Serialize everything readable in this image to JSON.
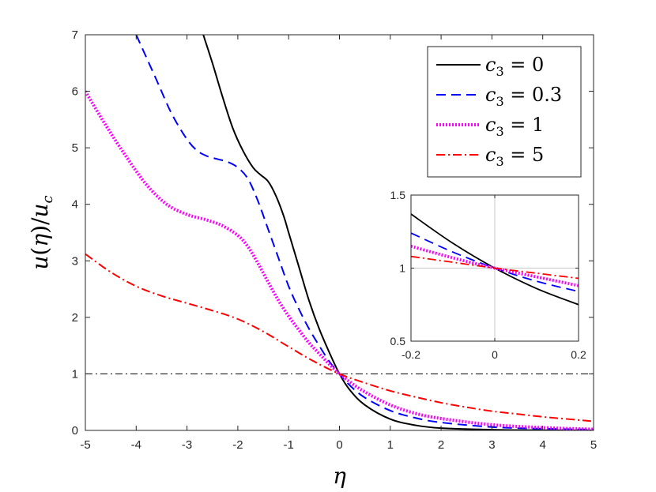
{
  "chart_data": [
    {
      "type": "line",
      "title": "",
      "xlabel": "η",
      "ylabel": "u(η)/u_c",
      "ylabel_parts": {
        "u": "u",
        "open": "(",
        "eta": "η",
        "close": ")/",
        "uc": "u",
        "sub": "c"
      },
      "xlim": [
        -5,
        5
      ],
      "ylim": [
        0,
        7
      ],
      "xticks": [
        -5,
        -4,
        -3,
        -2,
        -1,
        0,
        1,
        2,
        3,
        4,
        5
      ],
      "yticks": [
        0,
        1,
        2,
        3,
        4,
        5,
        6,
        7
      ],
      "xtick_labels": [
        "-5",
        "-4",
        "-3",
        "-2",
        "-1",
        "0",
        "1",
        "2",
        "3",
        "4",
        "5"
      ],
      "ytick_labels": [
        "0",
        "1",
        "2",
        "3",
        "4",
        "5",
        "6",
        "7"
      ],
      "reference_line": {
        "y": 1,
        "style": "dash-dot",
        "color": "#000000"
      },
      "legend_position": "top-right",
      "series": [
        {
          "name": "c_3 = 0",
          "legend": {
            "c": "c",
            "sub": "3",
            "eq": " = 0"
          },
          "color": "#000000",
          "style": "solid",
          "x": [
            -2.68,
            -2.5,
            -2.3,
            -2.1,
            -1.9,
            -1.7,
            -1.55,
            -1.4,
            -1.25,
            -1.1,
            -1.0,
            -0.8,
            -0.6,
            -0.4,
            -0.2,
            0,
            0.2,
            0.5,
            1.0,
            1.5,
            2.0,
            3.0,
            4.0,
            5.0
          ],
          "y": [
            7.0,
            6.5,
            5.9,
            5.35,
            4.95,
            4.65,
            4.52,
            4.4,
            4.15,
            3.8,
            3.5,
            2.9,
            2.3,
            1.8,
            1.38,
            1.0,
            0.72,
            0.45,
            0.2,
            0.09,
            0.04,
            0.012,
            0.004,
            0.002
          ]
        },
        {
          "name": "c_3 = 0.3",
          "legend": {
            "c": "c",
            "sub": "3",
            "eq": " = 0.3"
          },
          "color": "#0000ff",
          "style": "dashed",
          "x": [
            -4.0,
            -3.6,
            -3.3,
            -3.0,
            -2.8,
            -2.6,
            -2.4,
            -2.2,
            -2.0,
            -1.8,
            -1.6,
            -1.4,
            -1.2,
            -1.0,
            -0.8,
            -0.6,
            -0.4,
            -0.2,
            0,
            0.2,
            0.5,
            1.0,
            1.5,
            2.0,
            3.0,
            4.0,
            5.0
          ],
          "y": [
            7.0,
            6.2,
            5.6,
            5.15,
            4.95,
            4.85,
            4.8,
            4.75,
            4.65,
            4.45,
            4.05,
            3.55,
            3.05,
            2.55,
            2.15,
            1.8,
            1.5,
            1.22,
            1.0,
            0.8,
            0.58,
            0.35,
            0.22,
            0.14,
            0.06,
            0.03,
            0.015
          ]
        },
        {
          "name": "c_3 = 1",
          "legend": {
            "c": "c",
            "sub": "3",
            "eq": " = 1"
          },
          "color": "#ff00ff",
          "style": "dotted",
          "x": [
            -5.0,
            -4.6,
            -4.2,
            -3.8,
            -3.4,
            -3.0,
            -2.6,
            -2.3,
            -2.0,
            -1.8,
            -1.6,
            -1.4,
            -1.2,
            -1.0,
            -0.8,
            -0.6,
            -0.4,
            -0.2,
            0,
            0.2,
            0.5,
            1.0,
            1.5,
            2.0,
            3.0,
            4.0,
            5.0
          ],
          "y": [
            6.0,
            5.4,
            4.85,
            4.35,
            4.0,
            3.82,
            3.72,
            3.62,
            3.45,
            3.25,
            2.95,
            2.62,
            2.3,
            2.02,
            1.78,
            1.55,
            1.36,
            1.17,
            1.0,
            0.86,
            0.68,
            0.45,
            0.3,
            0.21,
            0.1,
            0.05,
            0.02
          ]
        },
        {
          "name": "c_3 = 5",
          "legend": {
            "c": "c",
            "sub": "3",
            "eq": " = 5"
          },
          "color": "#ff0000",
          "style": "dash-dot",
          "x": [
            -5.0,
            -4.5,
            -4.0,
            -3.5,
            -3.0,
            -2.5,
            -2.0,
            -1.5,
            -1.0,
            -0.5,
            0,
            0.5,
            1.0,
            1.5,
            2.0,
            2.5,
            3.0,
            3.5,
            4.0,
            4.5,
            5.0
          ],
          "y": [
            3.12,
            2.8,
            2.55,
            2.38,
            2.25,
            2.12,
            1.97,
            1.75,
            1.48,
            1.22,
            1.0,
            0.84,
            0.7,
            0.59,
            0.49,
            0.41,
            0.34,
            0.29,
            0.24,
            0.2,
            0.16
          ]
        }
      ]
    },
    {
      "type": "line",
      "title": "",
      "role": "inset",
      "xlabel": "",
      "ylabel": "",
      "xlim": [
        -0.2,
        0.2
      ],
      "ylim": [
        0.5,
        1.5
      ],
      "xticks": [
        -0.2,
        0,
        0.2
      ],
      "yticks": [
        0.5,
        1,
        1.5
      ],
      "xtick_labels": [
        "-0.2",
        "0",
        "0.2"
      ],
      "ytick_labels": [
        "0.5",
        "1",
        "1.5"
      ],
      "guide_lines": {
        "x": 0,
        "y": 1,
        "color": "#c8c8c8"
      },
      "series": [
        {
          "name": "c_3 = 0",
          "color": "#000000",
          "style": "solid",
          "x": [
            -0.2,
            -0.1,
            0,
            0.1,
            0.2
          ],
          "y": [
            1.37,
            1.17,
            1.0,
            0.86,
            0.75
          ]
        },
        {
          "name": "c_3 = 0.3",
          "color": "#0000ff",
          "style": "dashed",
          "x": [
            -0.2,
            -0.1,
            0,
            0.1,
            0.2
          ],
          "y": [
            1.24,
            1.11,
            1.0,
            0.91,
            0.84
          ]
        },
        {
          "name": "c_3 = 1",
          "color": "#ff00ff",
          "style": "dotted",
          "x": [
            -0.2,
            -0.1,
            0,
            0.1,
            0.2
          ],
          "y": [
            1.15,
            1.07,
            1.0,
            0.94,
            0.88
          ]
        },
        {
          "name": "c_3 = 5",
          "color": "#ff0000",
          "style": "dash-dot",
          "x": [
            -0.2,
            -0.1,
            0,
            0.1,
            0.2
          ],
          "y": [
            1.08,
            1.04,
            1.0,
            0.965,
            0.93
          ]
        }
      ]
    }
  ]
}
